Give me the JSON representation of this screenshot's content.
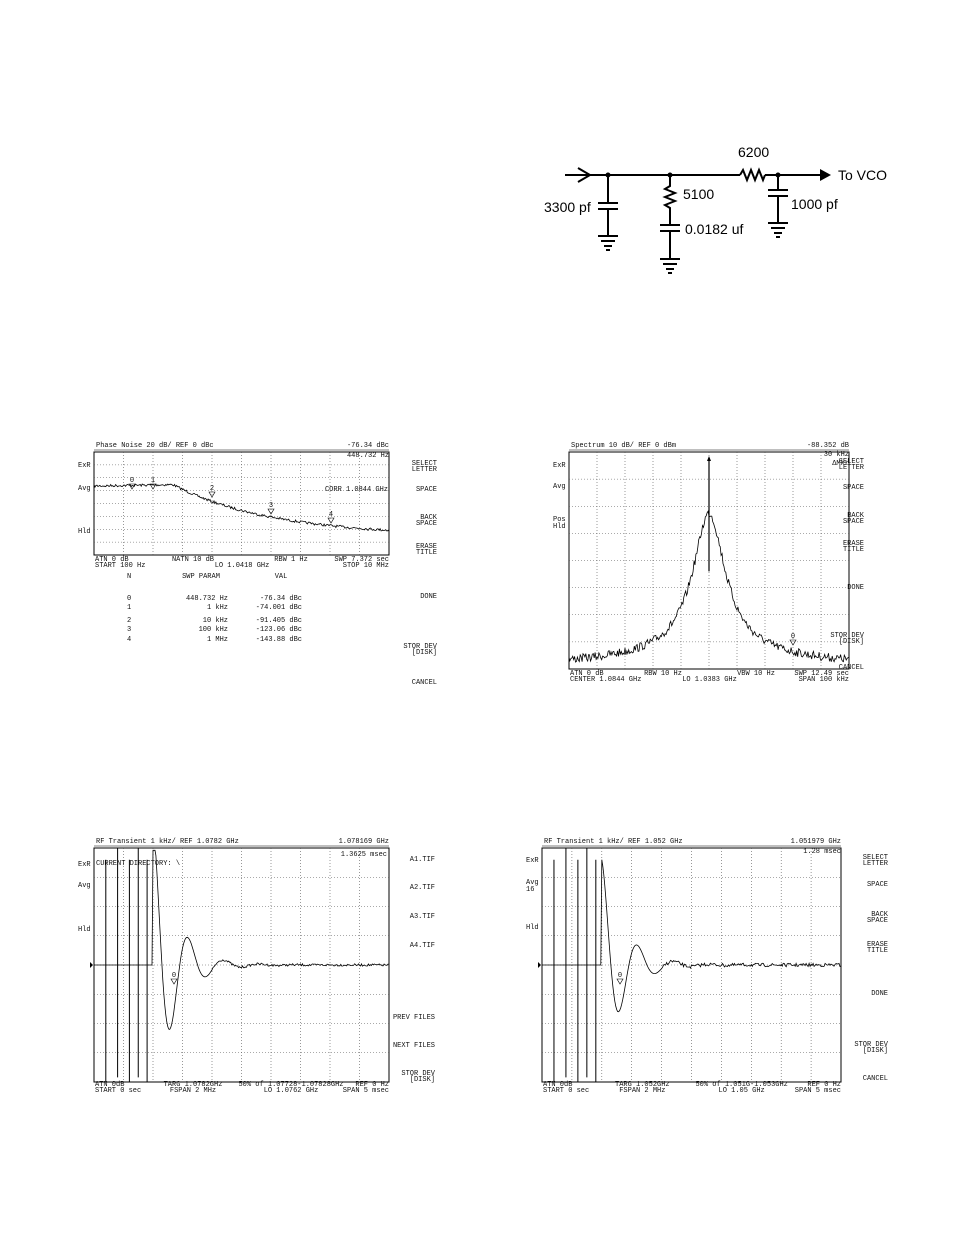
{
  "schematic": {
    "labels": {
      "r_series": "6200",
      "output": "To VCO",
      "r_shunt": "5100",
      "c_input": "3300 pf",
      "c_shunt": "0.0182 uf",
      "c_output": "1000 pf"
    }
  },
  "screens": [
    {
      "title": "Phase Noise   20 dB/ REF 0 dBc",
      "readouts": [
        "-76.34 dBc",
        "448.732 Hz"
      ],
      "side_labels": [
        [
          "ExR"
        ],
        [
          "Avg"
        ],
        [
          "Hld"
        ]
      ],
      "annotation": "CORR   1.0844 GHz",
      "markers": [
        "0",
        "1",
        "2",
        "3",
        "4"
      ],
      "footer": [
        [
          "ATN  0 dB",
          "NATN 10 dB",
          "RBW  1 Hz",
          "SWP  7.372 sec"
        ],
        [
          "START  100 Hz",
          "LO  1.0418 GHz",
          "STOP  10 MHz"
        ]
      ],
      "softkeys": [
        [
          "SELECT",
          "LETTER"
        ],
        [
          "SPACE"
        ],
        [
          "BACK",
          "SPACE"
        ],
        [
          "ERASE",
          "TITLE"
        ],
        [
          "DONE"
        ],
        [
          "STOR DEV",
          "[DISK]"
        ],
        [
          "CANCEL"
        ]
      ],
      "table": {
        "header": [
          "N",
          "SWP PARAM",
          "VAL"
        ],
        "rows": [
          [
            "0",
            "448.732 Hz",
            "-76.34 dBc"
          ],
          [
            "1",
            "1 kHz",
            "-74.001 dBc"
          ],
          [
            "2",
            "10 kHz",
            "-91.405 dBc"
          ],
          [
            "3",
            "100 kHz",
            "-123.06 dBc"
          ],
          [
            "4",
            "1 MHz",
            "-143.88 dBc"
          ]
        ]
      }
    },
    {
      "title": "Spectrum     10 dB/ REF 0 dBm",
      "readouts": [
        "-88.352 dB",
        "30 kHz",
        "ΔMkr"
      ],
      "side_labels": [
        [
          "ExR"
        ],
        [
          "Avg"
        ],
        [
          "Pos",
          "Hld"
        ]
      ],
      "markers": [
        "0"
      ],
      "footer": [
        [
          "ATN  0 dB",
          "RBW  10 Hz",
          "VBW  10 Hz",
          "SWP  12.49 sec"
        ],
        [
          "CENTER  1.0844 GHz",
          "LO  1.0383 GHz",
          "SPAN  100 kHz"
        ]
      ],
      "softkeys": [
        [
          "SELECT",
          "LETTER"
        ],
        [
          "SPACE"
        ],
        [
          "BACK",
          "SPACE"
        ],
        [
          "ERASE",
          "TITLE"
        ],
        [
          "DONE"
        ],
        [
          "STOR DEV",
          "[DISK]"
        ],
        [
          "CANCEL"
        ]
      ]
    },
    {
      "title": "RF Transient   1 kHz/ REF 1.0782 GHz",
      "readouts": [
        "1.078169 GHz",
        "1.3625 msec"
      ],
      "side_labels": [
        [
          "ExR"
        ],
        [
          "Avg"
        ],
        [
          "Hld"
        ]
      ],
      "annotation": "CURRENT DIRECTORY: \\",
      "markers": [
        "0"
      ],
      "footer": [
        [
          "ATN 0dB",
          "TARG 1.0782GHz",
          "50% of 1.07728-1.07828GHz",
          "REF 0 Hz"
        ],
        [
          "START 0 sec",
          "FSPAN 2 MHz",
          "LO 1.0762 GHz",
          "SPAN 5 msec"
        ]
      ],
      "softkeys": [
        [
          "A1.TIF"
        ],
        [
          "A2.TIF"
        ],
        [
          "A3.TIF"
        ],
        [
          "A4.TIF"
        ],
        [
          "PREV FILES"
        ],
        [
          "NEXT FILES"
        ],
        [
          "STOR DEV",
          "[DISK]"
        ]
      ]
    },
    {
      "title": "RF Transient   1 kHz/ REF 1.052 GHz",
      "readouts": [
        "1.051979 GHz",
        "1.28 msec"
      ],
      "side_labels": [
        [
          "ExR"
        ],
        [
          "Avg",
          "16"
        ],
        [
          "Hld"
        ]
      ],
      "markers": [
        "0"
      ],
      "footer": [
        [
          "ATN 0dB",
          "TARG 1.052GHz",
          "50% of 1.051G-1.053GHz",
          "REF 0 Hz"
        ],
        [
          "START 0 sec",
          "FSPAN 2 MHz",
          "LO 1.05 GHz",
          "SPAN 5 msec"
        ]
      ],
      "softkeys": [
        [
          "SELECT",
          "LETTER"
        ],
        [
          "SPACE"
        ],
        [
          "BACK",
          "SPACE"
        ],
        [
          "ERASE",
          "TITLE"
        ],
        [
          "DONE"
        ],
        [
          "STOR DEV",
          "[DISK]"
        ],
        [
          "CANCEL"
        ]
      ]
    }
  ]
}
